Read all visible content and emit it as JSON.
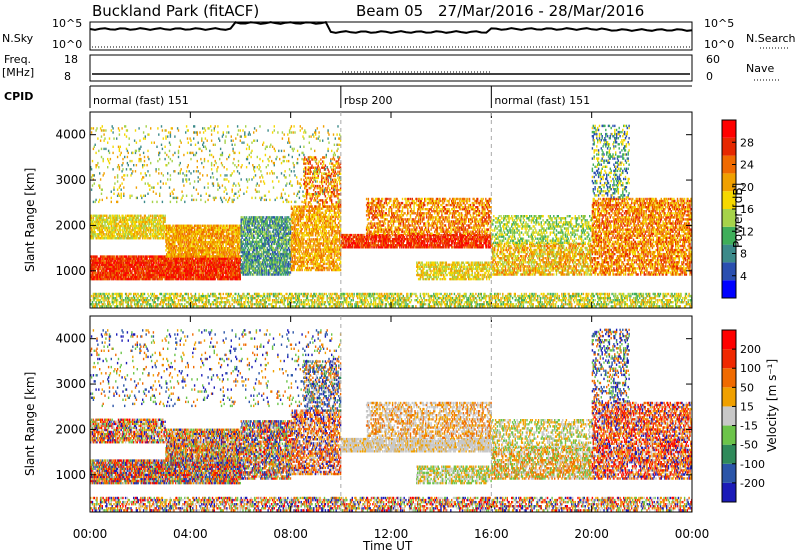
{
  "header": {
    "station": "Buckland Park (fitACF)",
    "beam": "Beam 05",
    "date_range": "27/Mar/2016 - 28/Mar/2016"
  },
  "summary_panels": {
    "nsky_label": "N.Sky",
    "nsky_ticks": [
      "10^5",
      "10^0"
    ],
    "nsearch_label": "N.Search",
    "nsearch_ticks": [
      "10^5",
      "10^0"
    ],
    "freq_label": "Freq.",
    "freq_unit": "[MHz]",
    "freq_ticks": [
      "18",
      "8"
    ],
    "nave_label": "Nave",
    "nave_ticks": [
      "60",
      "0"
    ],
    "cpid_label": "CPID"
  },
  "cpid_segments": [
    {
      "label": "normal (fast) 151",
      "start_hour": 0,
      "end_hour": 10
    },
    {
      "label": "rbsp 200",
      "start_hour": 10,
      "end_hour": 16
    },
    {
      "label": "normal (fast) 151",
      "start_hour": 16,
      "end_hour": 24
    }
  ],
  "chart_data": [
    {
      "type": "heatmap",
      "title": "",
      "xlabel": "Time UT",
      "ylabel": "Slant Range [km]",
      "x_ticks": [
        "00:00",
        "04:00",
        "08:00",
        "12:00",
        "16:00",
        "20:00",
        "00:00"
      ],
      "y_ticks": [
        "1000",
        "2000",
        "3000",
        "4000"
      ],
      "xlim_hours": [
        0,
        24
      ],
      "ylim_km": [
        180,
        4500
      ],
      "colorbar": {
        "label": "Power [dB]",
        "ticks": [
          "28",
          "24",
          "20",
          "16",
          "12",
          "8",
          "4"
        ],
        "colors": [
          "#0000ff",
          "#2a4fb0",
          "#3c8a8a",
          "#3fae5a",
          "#a6d34a",
          "#f5d800",
          "#f0a000",
          "#f06a00",
          "#e62800",
          "#ff0000"
        ]
      }
    },
    {
      "type": "heatmap",
      "title": "",
      "xlabel": "Time UT",
      "ylabel": "Slant Range [km]",
      "x_ticks": [
        "00:00",
        "04:00",
        "08:00",
        "12:00",
        "16:00",
        "20:00",
        "00:00"
      ],
      "y_ticks": [
        "1000",
        "2000",
        "3000",
        "4000"
      ],
      "xlim_hours": [
        0,
        24
      ],
      "ylim_km": [
        180,
        4500
      ],
      "colorbar": {
        "label": "Velocity [m s⁻¹]",
        "ticks": [
          "200",
          "100",
          "50",
          "15",
          "-15",
          "-50",
          "-100",
          "-200"
        ],
        "colors": [
          "#1b1bb8",
          "#2b55a8",
          "#2f8a5a",
          "#6cc44a",
          "#c8c8c8",
          "#f0a000",
          "#f06a00",
          "#f02800",
          "#ff0000"
        ]
      }
    }
  ],
  "footer": {
    "xlabel": "Time UT"
  }
}
